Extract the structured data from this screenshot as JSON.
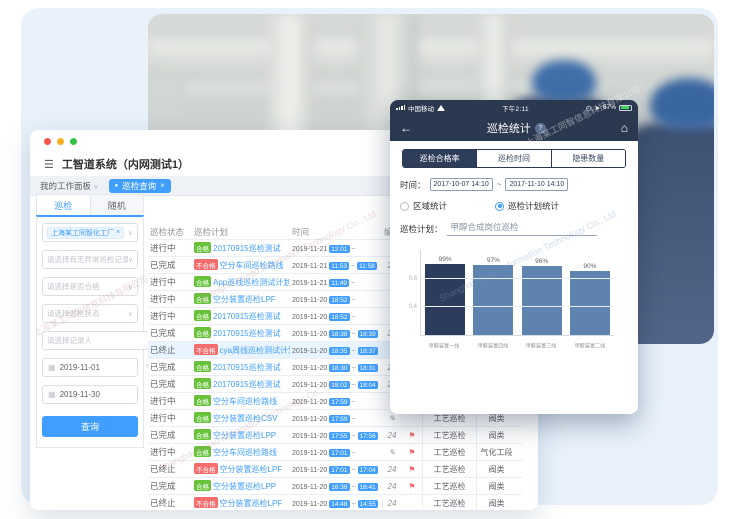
{
  "watermark": {
    "cn": "上海某工同智信息科技有限公司",
    "en": "Shanghai Inroad Information Technology Co., Ltd"
  },
  "window": {
    "app_title": "工智道系统（内网测试1）",
    "workspace_tab": "我的工作面板",
    "active_tab": "巡检查询"
  },
  "sidebar": {
    "tabs": [
      {
        "label": "巡检",
        "active": true
      },
      {
        "label": "随机",
        "active": false
      }
    ],
    "org_tag": "上海某工同智化工厂",
    "filters": [
      "请选择有无异常巡检记录",
      "请选择是否合格",
      "请选择巡检状态"
    ],
    "person_placeholder": "请选择记录人",
    "person_button": "选人",
    "date_from": "2019-11-01",
    "date_to": "2019-11-30",
    "search_button": "查询"
  },
  "table": {
    "headers": [
      "巡检状态",
      "巡检计划",
      "时间",
      "编写",
      "",
      "",
      ""
    ],
    "rows": [
      {
        "status": "进行中",
        "result": "合格",
        "plan": "20170915巡检测试",
        "date": "2019-11-21",
        "start": "12:01",
        "end": "",
        "meta": "✎",
        "flag": false,
        "type": "",
        "target": "",
        "highlight": false
      },
      {
        "status": "已完成",
        "result": "不合格",
        "plan": "空分车间巡检路线",
        "date": "2019-11-21",
        "start": "11:53",
        "end": "11:58",
        "meta": "21",
        "flag": false,
        "type": "",
        "target": "",
        "highlight": false
      },
      {
        "status": "进行中",
        "result": "合格",
        "plan": "App巡线巡检测试计划",
        "date": "2019-11-21",
        "start": "11:49",
        "end": "",
        "meta": "✎",
        "flag": false,
        "type": "",
        "target": "",
        "highlight": false
      },
      {
        "status": "进行中",
        "result": "合格",
        "plan": "空分装置巡检LPF",
        "date": "2019-11-20",
        "start": "18:52",
        "end": "",
        "meta": "✎",
        "flag": false,
        "type": "",
        "target": "",
        "highlight": false
      },
      {
        "status": "进行中",
        "result": "合格",
        "plan": "20170915巡检测试",
        "date": "2019-11-20",
        "start": "18:52",
        "end": "",
        "meta": "✎",
        "flag": false,
        "type": "",
        "target": "",
        "highlight": false
      },
      {
        "status": "已完成",
        "result": "合格",
        "plan": "20170915巡检测试",
        "date": "2019-11-20",
        "start": "18:38",
        "end": "18:39",
        "meta": "21",
        "flag": false,
        "type": "",
        "target": "",
        "highlight": false
      },
      {
        "status": "已终止",
        "result": "不合格",
        "plan": "cya周线巡检测试计划",
        "date": "2019-11-20",
        "start": "18:35",
        "end": "18:37",
        "meta": "✎",
        "flag": false,
        "type": "",
        "target": "",
        "highlight": true
      },
      {
        "status": "已完成",
        "result": "合格",
        "plan": "20170915巡检测试",
        "date": "2019-11-20",
        "start": "18:30",
        "end": "18:31",
        "meta": "21",
        "flag": false,
        "type": "",
        "target": "",
        "highlight": false
      },
      {
        "status": "已完成",
        "result": "合格",
        "plan": "20170915巡检测试",
        "date": "2019-11-20",
        "start": "18:02",
        "end": "18:04",
        "meta": "21",
        "flag": false,
        "type": "",
        "target": "",
        "highlight": false
      },
      {
        "status": "进行中",
        "result": "合格",
        "plan": "空分车间巡检路线",
        "date": "2019-11-20",
        "start": "17:59",
        "end": "",
        "meta": "✎",
        "flag": false,
        "type": "",
        "target": "",
        "highlight": false
      },
      {
        "status": "进行中",
        "result": "合格",
        "plan": "空分装置巡检CSV",
        "date": "2019-11-20",
        "start": "17:59",
        "end": "",
        "meta": "✎",
        "flag": false,
        "type": "工艺巡检",
        "target": "阀类",
        "highlight": false
      },
      {
        "status": "已完成",
        "result": "合格",
        "plan": "空分装置巡检LPP",
        "date": "2019-11-20",
        "start": "17:55",
        "end": "17:56",
        "meta": "24",
        "flag": true,
        "type": "工艺巡检",
        "target": "阀类",
        "highlight": false
      },
      {
        "status": "进行中",
        "result": "合格",
        "plan": "空分车间巡检路线",
        "date": "2019-11-20",
        "start": "17:01",
        "end": "",
        "meta": "✎",
        "flag": true,
        "type": "工艺巡检",
        "target": "气化工段",
        "highlight": false
      },
      {
        "status": "已终止",
        "result": "不合格",
        "plan": "空分装置巡检LPF",
        "date": "2019-11-20",
        "start": "17:01",
        "end": "17:04",
        "meta": "24",
        "flag": true,
        "type": "工艺巡检",
        "target": "阀类",
        "highlight": false
      },
      {
        "status": "已完成",
        "result": "合格",
        "plan": "空分装置巡检LPP",
        "date": "2019-11-20",
        "start": "16:38",
        "end": "16:41",
        "meta": "24",
        "flag": true,
        "type": "工艺巡检",
        "target": "阀类",
        "highlight": false
      },
      {
        "status": "已终止",
        "result": "不合格",
        "plan": "空分装置巡检LPF",
        "date": "2019-11-20",
        "start": "14:48",
        "end": "14:55",
        "meta": "24",
        "flag": false,
        "type": "工艺巡检",
        "target": "阀类",
        "highlight": false
      }
    ]
  },
  "phone": {
    "status": {
      "carrier": "中国移动",
      "time": "下午2:11",
      "battery": "67%"
    },
    "nav": {
      "title": "巡检统计",
      "help": "?",
      "back_icon": "←",
      "home_icon": "⌂"
    },
    "tabs": [
      {
        "label": "巡检合格率",
        "active": true
      },
      {
        "label": "巡检时间",
        "active": false
      },
      {
        "label": "隐患数量",
        "active": false
      }
    ],
    "time_label": "时间：",
    "time_from": "2017-10-07 14:10",
    "range_sep": "~",
    "time_to": "2017-11-10 14:10",
    "radios": [
      {
        "label": "区域统计",
        "checked": false
      },
      {
        "label": "巡检计划统计",
        "checked": true
      }
    ],
    "plan_label": "巡检计划：",
    "plan_value": "甲醇合成岗位巡检"
  },
  "chart_data": {
    "type": "bar",
    "title": "巡检合格率",
    "categories": [
      "甲醇装置一线",
      "甲醇装置四线",
      "甲醇装置三线",
      "甲醇装置二线"
    ],
    "values": [
      0.99,
      0.97,
      0.96,
      0.9
    ],
    "value_labels": [
      "99%",
      "97%",
      "96%",
      "90%"
    ],
    "xlabel": "",
    "ylabel": "",
    "ylim": [
      0,
      1.2
    ],
    "yticks": [
      0.4,
      0.8
    ],
    "grid": true,
    "legend": "none",
    "bar_colors": [
      "#2c3c5c",
      "#5d83ae",
      "#5d83ae",
      "#5d83ae"
    ]
  }
}
